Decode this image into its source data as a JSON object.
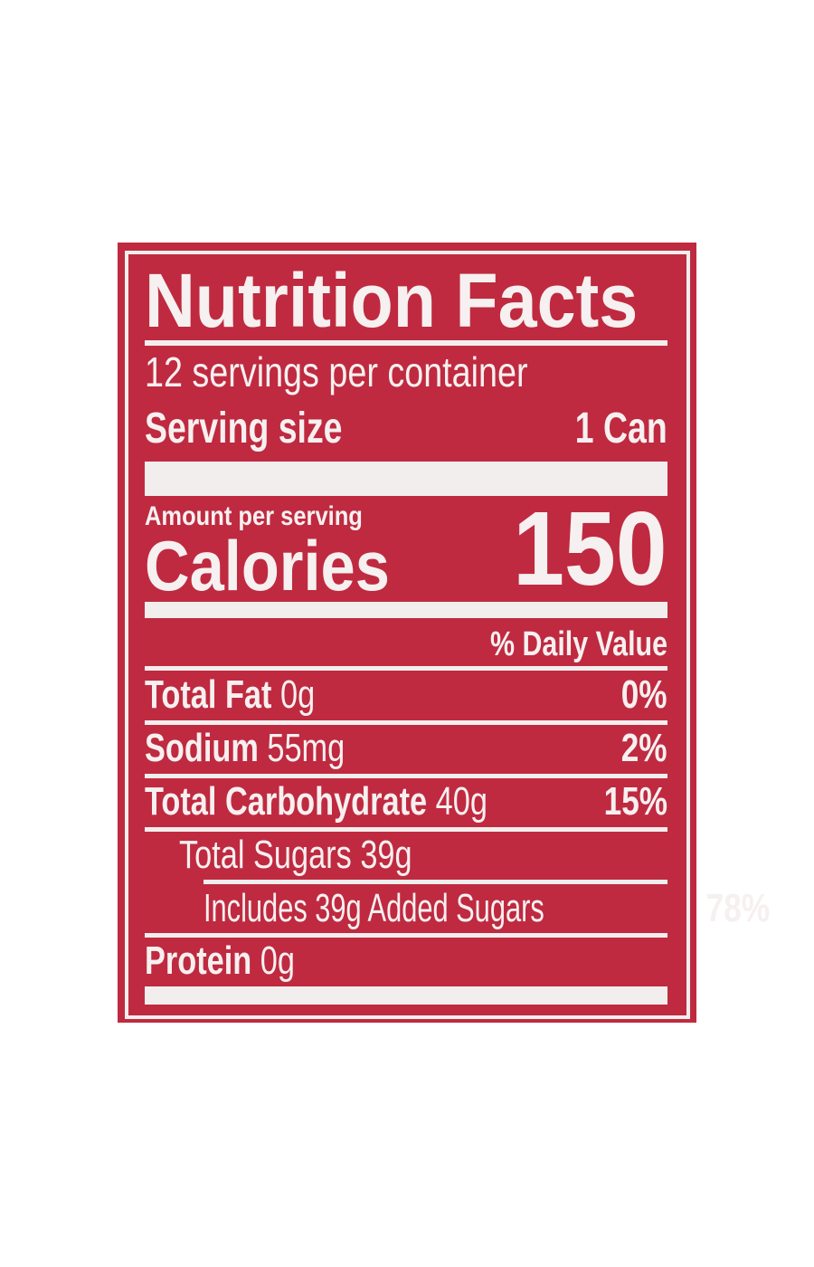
{
  "label": {
    "title": "Nutrition Facts",
    "servings_per_container": "12 servings per container",
    "serving_size_label": "Serving size",
    "serving_size_value": "1 Can",
    "amount_per_serving": "Amount per serving",
    "calories_label": "Calories",
    "calories_value": "150",
    "daily_value_header": "% Daily Value",
    "nutrients": [
      {
        "name": "Total Fat",
        "amount": "0g",
        "dv": "0%"
      },
      {
        "name": "Sodium",
        "amount": "55mg",
        "dv": "2%"
      },
      {
        "name": "Total Carbohydrate",
        "amount": "40g",
        "dv": "15%"
      },
      {
        "name": "Total Sugars",
        "amount": "39g",
        "dv": ""
      },
      {
        "name": "Includes 39g Added Sugars",
        "amount": "",
        "dv": "78%"
      },
      {
        "name": "Protein",
        "amount": "0g",
        "dv": ""
      }
    ],
    "colors": {
      "background": "#bf2a40",
      "text": "#f6f0f0"
    }
  }
}
